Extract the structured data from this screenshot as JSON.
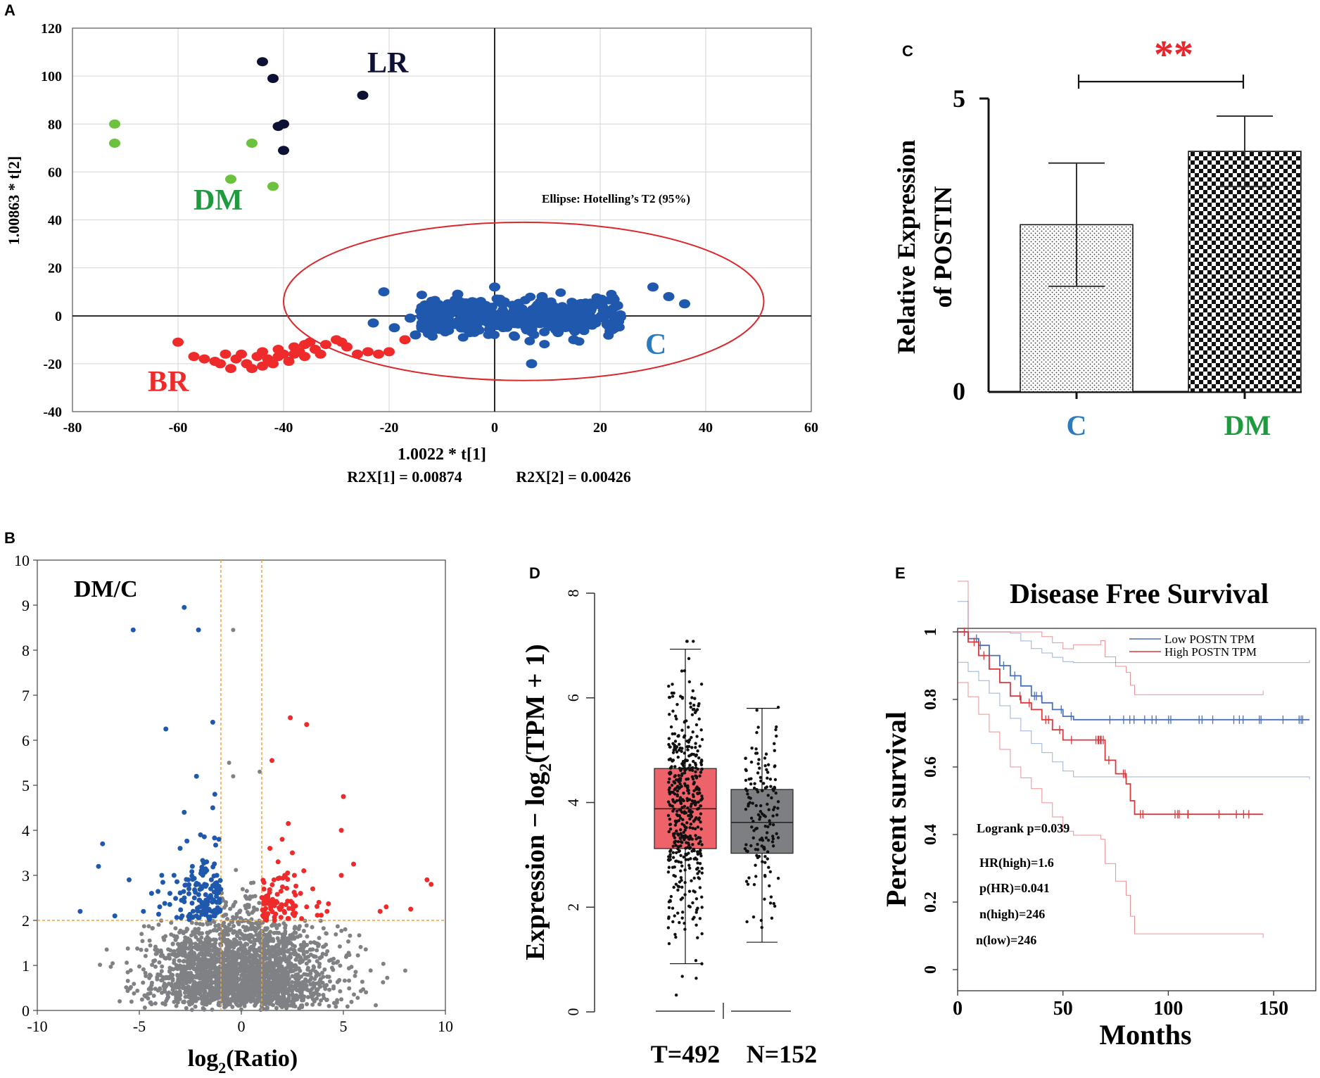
{
  "colors": {
    "lr": "#0d1133",
    "dm_green": "#6cc13f",
    "dm_text": "#1f9a3e",
    "c_blue": "#1f58ad",
    "c_text": "#2a7bc0",
    "br_red": "#ee2a2a",
    "ellipse": "#d9292c",
    "gray": "#7f8184",
    "box_t": "#ee6369",
    "box_n": "#7d7f82",
    "low_line": "#4a6fb5",
    "high_line": "#d9383d",
    "orange_guide": "#f0a23c",
    "star": "#e8262b"
  },
  "chart_data": [
    {
      "panel": "A",
      "type": "scatter",
      "xlabel": "1.0022 * t[1]",
      "ylabel": "1.00863 * t[2]",
      "footnote_1": "R2X[1] = 0.00874",
      "footnote_2": "R2X[2] = 0.00426",
      "xlim": [
        -80,
        60
      ],
      "ylim": [
        -40,
        120
      ],
      "xticks": [
        "-80",
        "-60",
        "-40",
        "-20",
        "0",
        "20",
        "40",
        "60"
      ],
      "yticks": [
        "120",
        "100",
        "80",
        "60",
        "40",
        "20",
        "0",
        "-20",
        "-40"
      ],
      "ellipse_label": "Ellipse: Hotelling’s T2 (95%)",
      "ellipse": {
        "cx": 5.5,
        "cy": 6,
        "rx": 45.5,
        "ry": 33
      },
      "groups": [
        {
          "name": "LR",
          "points": [
            [
              -44,
              106
            ],
            [
              -42,
              99
            ],
            [
              -25,
              92
            ],
            [
              -40,
              80
            ],
            [
              -41,
              79
            ],
            [
              -40,
              69
            ]
          ]
        },
        {
          "name": "DM",
          "points": [
            [
              -72,
              80
            ],
            [
              -72,
              72
            ],
            [
              -46,
              72
            ],
            [
              -50,
              57
            ],
            [
              -42,
              54
            ]
          ]
        },
        {
          "name": "BR",
          "points": [
            [
              -60,
              -11
            ],
            [
              -57,
              -17
            ],
            [
              -55,
              -18
            ],
            [
              -53,
              -19
            ],
            [
              -52,
              -20
            ],
            [
              -50,
              -22
            ],
            [
              -48,
              -16
            ],
            [
              -47,
              -20
            ],
            [
              -46,
              -22
            ],
            [
              -45,
              -17
            ],
            [
              -44,
              -15
            ],
            [
              -43,
              -18
            ],
            [
              -42,
              -20
            ],
            [
              -41,
              -14
            ],
            [
              -40,
              -16
            ],
            [
              -39,
              -19
            ],
            [
              -38,
              -13
            ],
            [
              -37,
              -15
            ],
            [
              -36,
              -17
            ],
            [
              -35,
              -11
            ],
            [
              -34,
              -14
            ],
            [
              -33,
              -16
            ],
            [
              -32,
              -12
            ],
            [
              -30,
              -10
            ],
            [
              -28,
              -13
            ],
            [
              -26,
              -16
            ],
            [
              -24,
              -15
            ],
            [
              -22,
              -16
            ],
            [
              -20,
              -15
            ],
            [
              -17,
              -10
            ],
            [
              -51,
              -16
            ],
            [
              -49,
              -18
            ],
            [
              -44,
              -21
            ],
            [
              -41,
              -17
            ],
            [
              -38,
              -16
            ],
            [
              -36,
              -12
            ],
            [
              -29,
              -11
            ]
          ]
        },
        {
          "name": "C",
          "points": [
            [
              30,
              12
            ],
            [
              33,
              8
            ],
            [
              36,
              5
            ],
            [
              7,
              -20
            ],
            [
              -23,
              -3
            ],
            [
              -19,
              -5
            ],
            [
              -16,
              -1
            ],
            [
              -14,
              2
            ],
            [
              -21,
              10
            ],
            [
              -15,
              -8
            ],
            [
              15,
              -10
            ],
            [
              0,
              12
            ],
            [
              -7,
              9
            ],
            [
              9,
              8
            ],
            [
              20,
              5
            ],
            [
              -3,
              -6
            ],
            [
              4,
              -3
            ],
            [
              12,
              -7
            ],
            [
              -10,
              3
            ],
            [
              18,
              -2
            ],
            [
              23,
              4
            ],
            [
              -12,
              -5
            ]
          ]
        }
      ],
      "group_labels": [
        "LR",
        "DM",
        "BR",
        "C"
      ]
    },
    {
      "panel": "B",
      "type": "scatter",
      "title": "DM/C",
      "xlabel": "log2(Ratio)",
      "xlabel_main": "log",
      "xlabel_sub": "2",
      "xlabel_rest": "(Ratio)",
      "xlim": [
        -10,
        10
      ],
      "ylim": [
        0,
        10
      ],
      "xticks": [
        "-10",
        "-5",
        "0",
        "5",
        "10"
      ],
      "yticks": [
        "10",
        "9",
        "8",
        "7",
        "6",
        "5",
        "4",
        "3",
        "2",
        "1",
        "0"
      ],
      "thresholds": {
        "x": [
          -1,
          1
        ],
        "y": 2
      },
      "down_points": [
        [
          -2.8,
          8.95
        ],
        [
          -5.3,
          8.45
        ],
        [
          -2.1,
          8.45
        ],
        [
          -3.7,
          6.25
        ],
        [
          -1.4,
          6.4
        ],
        [
          -2.2,
          5.2
        ],
        [
          -1.3,
          4.8
        ],
        [
          -2.8,
          4.4
        ],
        [
          -6.8,
          3.7
        ],
        [
          -7.0,
          3.2
        ],
        [
          -5.5,
          2.9
        ],
        [
          -7.9,
          2.2
        ],
        [
          -6.2,
          2.1
        ],
        [
          -4.8,
          2.2
        ],
        [
          -3.0,
          3.6
        ],
        [
          -2.0,
          3.9
        ],
        [
          -1.4,
          4.5
        ],
        [
          -3.5,
          2.6
        ],
        [
          -4.0,
          2.3
        ],
        [
          -2.6,
          2.9
        ],
        [
          -1.7,
          3.3
        ],
        [
          -1.2,
          2.4
        ],
        [
          -2.3,
          2.5
        ],
        [
          -1.1,
          3.8
        ],
        [
          -1.9,
          2.2
        ],
        [
          -2.9,
          2.1
        ],
        [
          -3.3,
          3.0
        ],
        [
          -1.5,
          2.7
        ],
        [
          -2.4,
          3.2
        ],
        [
          -1.2,
          3.0
        ],
        [
          -4.4,
          2.6
        ],
        [
          -3.9,
          3.0
        ],
        [
          -1.8,
          2.8
        ],
        [
          -2.2,
          2.1
        ],
        [
          -1.3,
          2.1
        ]
      ],
      "up_points": [
        [
          2.4,
          6.5
        ],
        [
          3.2,
          6.35
        ],
        [
          1.5,
          5.55
        ],
        [
          5.0,
          4.75
        ],
        [
          2.3,
          4.15
        ],
        [
          2.0,
          3.8
        ],
        [
          4.9,
          4.0
        ],
        [
          5.5,
          3.25
        ],
        [
          4.9,
          3.0
        ],
        [
          9.1,
          2.9
        ],
        [
          9.3,
          2.8
        ],
        [
          7.1,
          2.3
        ],
        [
          8.3,
          2.25
        ],
        [
          6.8,
          2.2
        ],
        [
          3.5,
          2.7
        ],
        [
          2.6,
          3.0
        ],
        [
          1.8,
          3.3
        ],
        [
          1.3,
          2.5
        ],
        [
          2.1,
          2.2
        ],
        [
          3.8,
          2.4
        ],
        [
          1.6,
          2.9
        ],
        [
          2.9,
          2.6
        ],
        [
          1.2,
          2.1
        ],
        [
          4.2,
          2.2
        ],
        [
          2.5,
          3.5
        ],
        [
          1.4,
          3.6
        ],
        [
          3.2,
          2.3
        ]
      ],
      "ns_outliers": [
        [
          -0.4,
          8.45
        ],
        [
          -0.6,
          5.5
        ],
        [
          -0.4,
          5.2
        ],
        [
          0.9,
          5.3
        ]
      ]
    },
    {
      "panel": "C",
      "type": "bar",
      "ylabel_line1": "Relative Expression",
      "ylabel_line2": "of POSTIN",
      "categories": [
        "C",
        "DM"
      ],
      "values": [
        2.85,
        4.1
      ],
      "errors": [
        1.05,
        0.6
      ],
      "ylim": [
        0,
        5
      ],
      "yticks": [
        "5",
        "0"
      ],
      "significance": "**"
    },
    {
      "panel": "D",
      "type": "box",
      "ylabel": "Expression − log2(TPM + 1)",
      "ylabel_pre": "Expression − log",
      "ylabel_sub": "2",
      "ylabel_post": "(TPM + 1)",
      "ylim": [
        0,
        8
      ],
      "yticks": [
        "8",
        "6",
        "4",
        "2",
        "0"
      ],
      "series": [
        {
          "name": "T=492",
          "min": 0.92,
          "q1": 3.12,
          "median": 3.88,
          "q3": 4.65,
          "max": 6.93,
          "n": 492
        },
        {
          "name": "N=152",
          "min": 1.33,
          "q1": 3.03,
          "median": 3.62,
          "q3": 4.25,
          "max": 5.8,
          "n": 152
        }
      ]
    },
    {
      "panel": "E",
      "type": "line",
      "title": "Disease Free Survival",
      "xlabel": "Months",
      "ylabel": "Percent survival",
      "xlim": [
        0,
        170
      ],
      "ylim": [
        0,
        1.05
      ],
      "xticks": [
        "0",
        "50",
        "100",
        "150"
      ],
      "yticks": [
        "1",
        "0.8",
        "0.6",
        "0.4",
        "0.2",
        "0"
      ],
      "series": [
        {
          "name": "Low POSTN TPM",
          "x": [
            0,
            5,
            10,
            15,
            20,
            25,
            30,
            35,
            40,
            45,
            50,
            55,
            167
          ],
          "y": [
            1,
            0.98,
            0.96,
            0.93,
            0.9,
            0.87,
            0.84,
            0.81,
            0.79,
            0.77,
            0.75,
            0.74,
            0.74
          ]
        },
        {
          "name": "High POSTN TPM",
          "x": [
            0,
            5,
            10,
            15,
            20,
            25,
            30,
            35,
            40,
            45,
            50,
            55,
            68,
            70,
            75,
            80,
            82,
            84,
            145
          ],
          "y": [
            1,
            0.97,
            0.93,
            0.89,
            0.85,
            0.81,
            0.79,
            0.77,
            0.74,
            0.71,
            0.68,
            0.68,
            0.68,
            0.62,
            0.58,
            0.55,
            0.5,
            0.46,
            0.46
          ]
        }
      ],
      "stats": [
        "Logrank p=0.039",
        "HR(high)=1.6",
        "p(HR)=0.041",
        "n(high)=246",
        "n(low)=246"
      ]
    }
  ],
  "panel_letters": [
    "A",
    "B",
    "C",
    "D",
    "E"
  ]
}
